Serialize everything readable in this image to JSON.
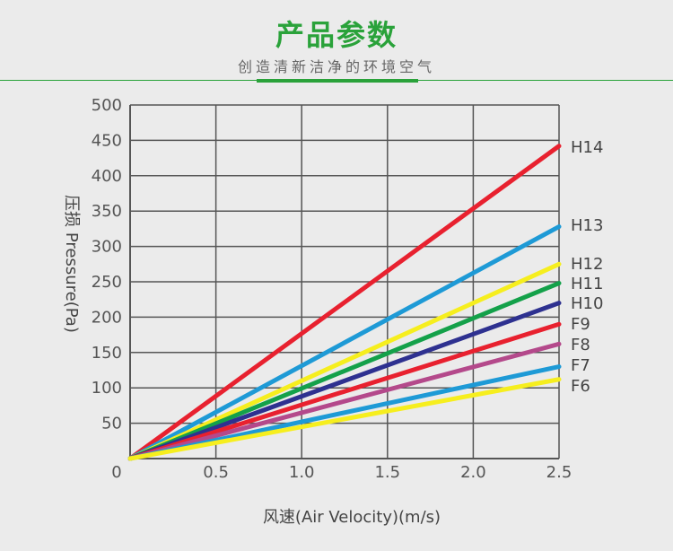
{
  "header": {
    "title": "产品参数",
    "subtitle": "创造清新洁净的环境空气"
  },
  "colors": {
    "accent": "#2aa23a",
    "background": "#ebebeb",
    "grid": "#555555"
  },
  "chart_data": {
    "type": "line",
    "title": "",
    "xlabel": "风速(Air Velocity)(m/s)",
    "ylabel": "压损 Pressure(Pa)",
    "xlim": [
      0,
      2.5
    ],
    "ylim": [
      0,
      500
    ],
    "x_ticks": [
      "0",
      "0.5",
      "1.0",
      "1.5",
      "2.0",
      "2.5"
    ],
    "y_ticks": [
      "50",
      "100",
      "150",
      "200",
      "250",
      "300",
      "350",
      "400",
      "450",
      "500"
    ],
    "grid": true,
    "series": [
      {
        "name": "H14",
        "color": "#e8212f",
        "x": [
          0,
          2.5
        ],
        "y": [
          0,
          442
        ]
      },
      {
        "name": "H13",
        "color": "#1e9ad6",
        "x": [
          0,
          2.5
        ],
        "y": [
          0,
          328
        ]
      },
      {
        "name": "H12",
        "color": "#f6ee1e",
        "x": [
          0,
          2.5
        ],
        "y": [
          0,
          275
        ]
      },
      {
        "name": "H11",
        "color": "#14a14a",
        "x": [
          0,
          2.5
        ],
        "y": [
          0,
          248
        ]
      },
      {
        "name": "H10",
        "color": "#2e3190",
        "x": [
          0,
          2.5
        ],
        "y": [
          0,
          220
        ]
      },
      {
        "name": "F9",
        "color": "#e8212f",
        "x": [
          0,
          2.5
        ],
        "y": [
          0,
          190
        ]
      },
      {
        "name": "F8",
        "color": "#b4498b",
        "x": [
          0,
          2.5
        ],
        "y": [
          0,
          162
        ]
      },
      {
        "name": "F7",
        "color": "#1e9ad6",
        "x": [
          0,
          2.5
        ],
        "y": [
          0,
          130
        ]
      },
      {
        "name": "F6",
        "color": "#f6ee1e",
        "x": [
          0,
          2.5
        ],
        "y": [
          0,
          112
        ]
      }
    ],
    "series_labels": [
      "H14",
      "H13",
      "H12",
      "H11",
      "H10",
      "F9",
      "F8",
      "F7",
      "F6"
    ]
  }
}
